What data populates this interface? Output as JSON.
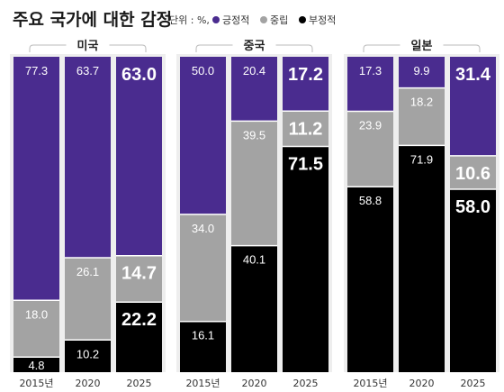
{
  "chart_data": {
    "type": "bar",
    "stacked": true,
    "normalized": true,
    "title": "주요 국가에 대한 감정",
    "unit_label": "단위 : %,",
    "legend": [
      {
        "name": "긍정적",
        "color": "#4a2c8f"
      },
      {
        "name": "중립",
        "color": "#a3a3a3"
      },
      {
        "name": "부정적",
        "color": "#000000"
      }
    ],
    "legend_position": "top-right",
    "grid": false,
    "ylim": [
      0,
      100
    ],
    "groups": [
      {
        "name": "미국",
        "categories": [
          "2015년",
          "2020",
          "2025"
        ],
        "series": [
          {
            "name": "긍정적",
            "values": [
              "77.3",
              "63.7",
              "63.0"
            ]
          },
          {
            "name": "중립",
            "values": [
              "18.0",
              "26.1",
              "14.7"
            ]
          },
          {
            "name": "부정적",
            "values": [
              "4.8",
              "10.2",
              "22.2"
            ]
          }
        ]
      },
      {
        "name": "중국",
        "categories": [
          "2015년",
          "2020",
          "2025"
        ],
        "series": [
          {
            "name": "긍정적",
            "values": [
              "50.0",
              "20.4",
              "17.2"
            ]
          },
          {
            "name": "중립",
            "values": [
              "34.0",
              "39.5",
              "11.2"
            ]
          },
          {
            "name": "부정적",
            "values": [
              "16.1",
              "40.1",
              "71.5"
            ]
          }
        ]
      },
      {
        "name": "일본",
        "categories": [
          "2015년",
          "2020",
          "2025"
        ],
        "series": [
          {
            "name": "긍정적",
            "values": [
              "17.3",
              "9.9",
              "31.4"
            ]
          },
          {
            "name": "중립",
            "values": [
              "23.9",
              "18.2",
              "10.6"
            ]
          },
          {
            "name": "부정적",
            "values": [
              "58.8",
              "71.9",
              "58.0"
            ]
          }
        ]
      }
    ]
  }
}
